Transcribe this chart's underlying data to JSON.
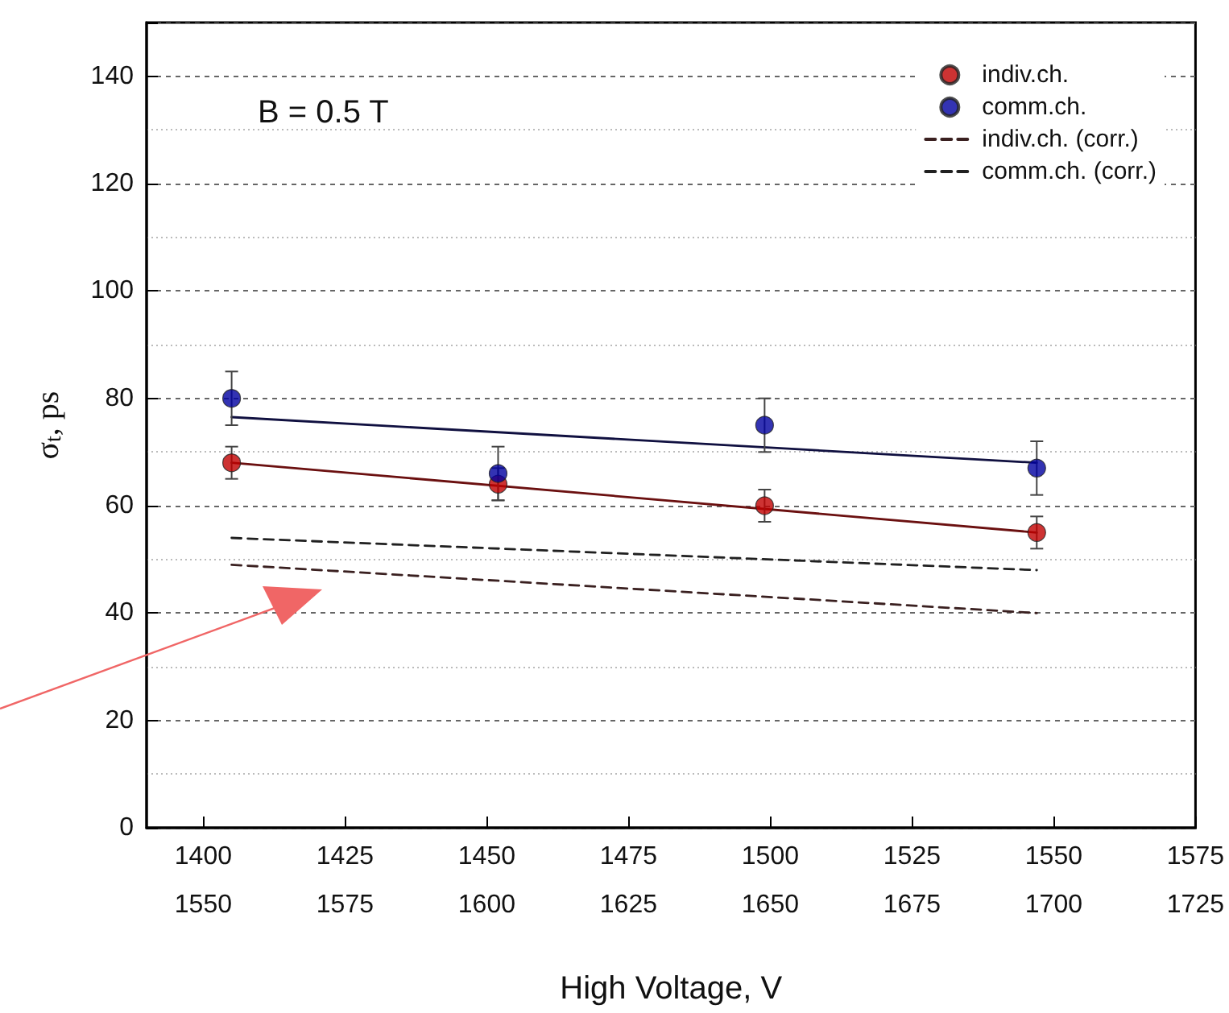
{
  "chart_data": {
    "type": "scatter",
    "xlabel": "High Voltage, V",
    "ylabel": "σ$_{t}$, ps",
    "xlim": [
      1390,
      1575
    ],
    "xticks": [
      1400,
      1425,
      1450,
      1475,
      1500,
      1525,
      1550,
      1575
    ],
    "x2lim": [
      1540,
      1725
    ],
    "x2ticks": [
      1550,
      1575,
      1600,
      1625,
      1650,
      1675,
      1700,
      1725
    ],
    "ylim": [
      0,
      150
    ],
    "yticks": [
      0,
      20,
      40,
      60,
      80,
      100,
      120,
      140
    ],
    "grid": "y",
    "legend": "top right",
    "annotations": [
      "B = 0.5 T"
    ],
    "series": [
      {
        "name": "indiv.ch.",
        "marker": "circle",
        "color": "#c00000",
        "x": [
          1405,
          1452,
          1499,
          1547
        ],
        "values": [
          68,
          64,
          60,
          55
        ],
        "errors": [
          3,
          3,
          3,
          3
        ]
      },
      {
        "name": "comm.ch.",
        "marker": "circle",
        "color": "#0000a0",
        "x": [
          1405,
          1452,
          1499,
          1547
        ],
        "values": [
          80,
          66,
          75,
          67
        ],
        "errors": [
          5,
          5,
          5,
          5
        ]
      },
      {
        "name": "indiv.ch. (corr.)",
        "type": "line",
        "marker": "none",
        "line_style": "dashed",
        "color": "#3a2020",
        "x": [
          1405,
          1547
        ],
        "values": [
          49,
          40
        ]
      },
      {
        "name": "comm.ch. (corr.)",
        "type": "line",
        "marker": "none",
        "line_style": "dashed",
        "color": "#202020",
        "x": [
          1405,
          1547
        ],
        "values": [
          54,
          48
        ]
      },
      {
        "type": "line",
        "marker": "none",
        "line_style": "solid",
        "color": "#6b1010",
        "x": [
          1405,
          1547
        ],
        "values": [
          68,
          55
        ]
      },
      {
        "type": "line",
        "marker": "none",
        "line_style": "solid",
        "color": "#101040",
        "x": [
          1405,
          1547
        ],
        "values": [
          76.5,
          68
        ]
      }
    ]
  }
}
